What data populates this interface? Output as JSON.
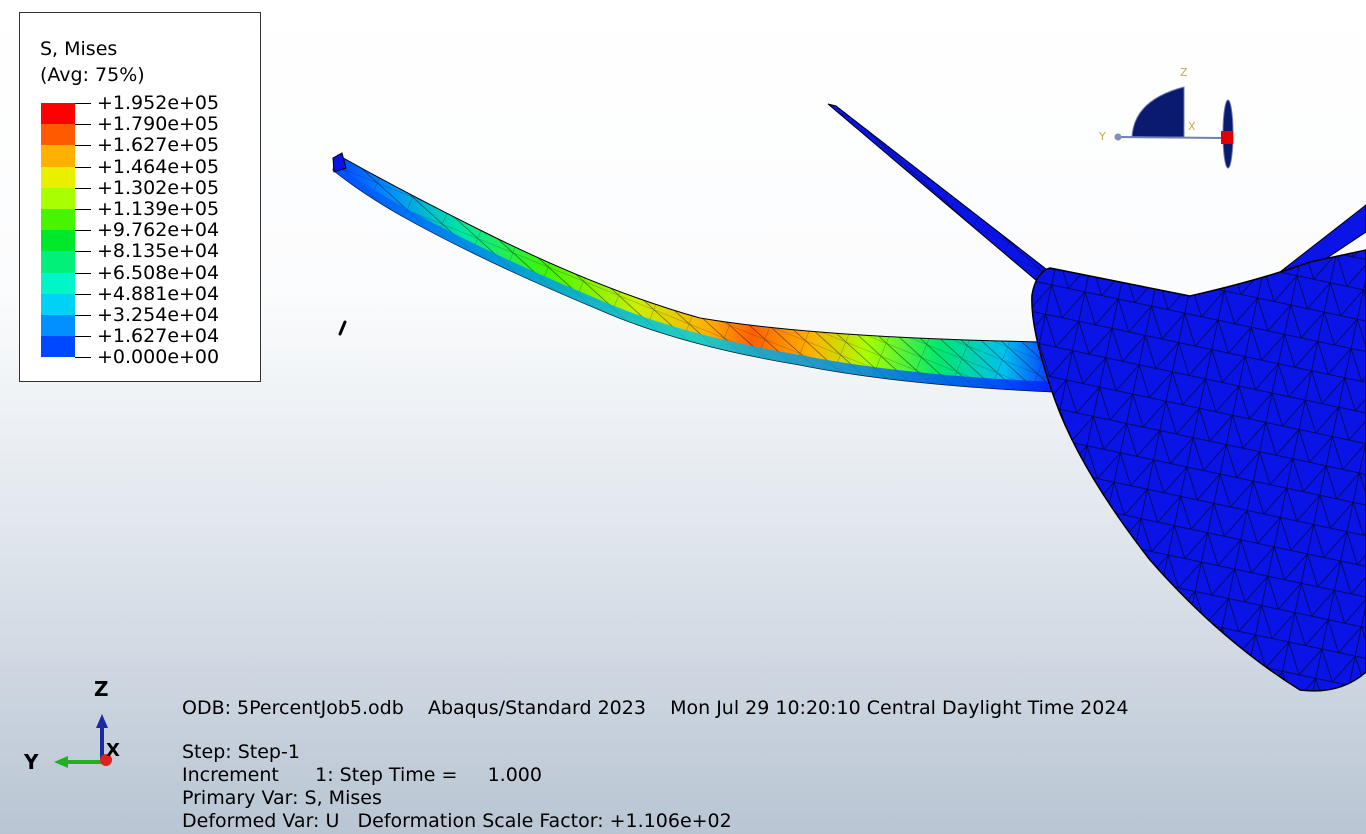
{
  "legend": {
    "title": "S, Mises",
    "subtitle": "(Avg: 75%)",
    "levels": [
      {
        "label": "+1.952e+05",
        "color": "#ff0000"
      },
      {
        "label": "+1.790e+05",
        "color": "#ff5a00"
      },
      {
        "label": "+1.627e+05",
        "color": "#ffb000"
      },
      {
        "label": "+1.464e+05",
        "color": "#e8f000"
      },
      {
        "label": "+1.302e+05",
        "color": "#a8ff00"
      },
      {
        "label": "+1.139e+05",
        "color": "#46f500"
      },
      {
        "label": "+9.762e+04",
        "color": "#00e82a"
      },
      {
        "label": "+8.135e+04",
        "color": "#00f07a"
      },
      {
        "label": "+6.508e+04",
        "color": "#00f5c8"
      },
      {
        "label": "+4.881e+04",
        "color": "#00d2f5"
      },
      {
        "label": "+3.254e+04",
        "color": "#0090ff"
      },
      {
        "label": "+1.627e+04",
        "color": "#0048ff"
      },
      {
        "label": "+0.000e+00",
        "color": "#0010ff"
      }
    ]
  },
  "info": {
    "odb": "ODB: 5PercentJob5.odb",
    "solver": "Abaqus/Standard 2023",
    "date": "Mon Jul 29 10:20:10 Central Daylight Time 2024",
    "step": "Step: Step-1",
    "increment": "Increment      1: Step Time =     1.000",
    "primary_var": "Primary Var: S, Mises",
    "deformed_var": "Deformed Var: U   Deformation Scale Factor: +1.106e+02"
  },
  "triad": {
    "z": "Z",
    "y": "Y",
    "x": "X"
  },
  "viewcube": {
    "z": "Z",
    "y": "Y",
    "x": "X"
  },
  "colors": {
    "model_blue": "#0a14e6",
    "mesh_line": "#000000",
    "viewcube_navy": "#0a1a6e",
    "viewcube_red": "#e00000"
  }
}
